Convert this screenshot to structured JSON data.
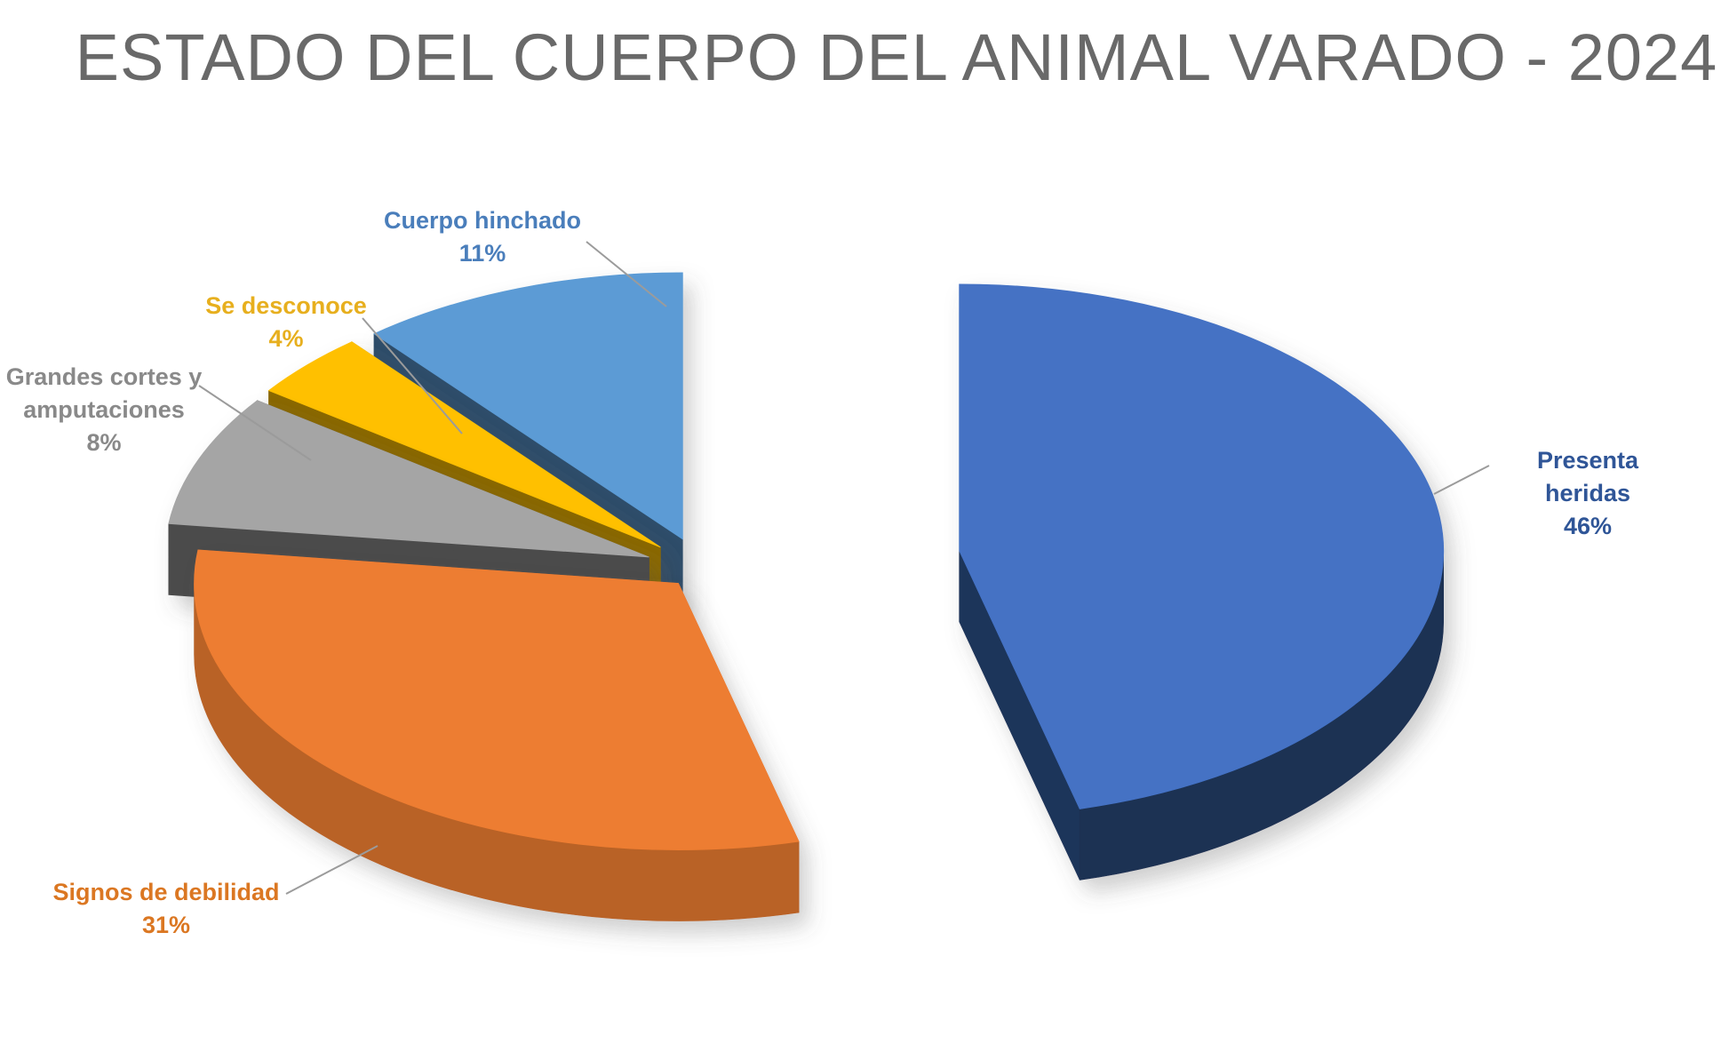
{
  "title": "ESTADO DEL CUERPO DEL ANIMAL VARADO - 2024",
  "chart_data": {
    "type": "pie",
    "title": "ESTADO DEL CUERPO DEL ANIMAL VARADO - 2024",
    "style": "3d-exploded-pie",
    "unit": "%",
    "start_angle_deg": 0,
    "direction": "clockwise",
    "legend_position": "none",
    "labels_style": "outside-with-leader-lines",
    "background_color": "#ffffff",
    "title_color": "#696969",
    "leader_line_color": "#9b9b9b",
    "slices": [
      {
        "label": "Presenta heridas",
        "value": 46,
        "percent_text": "46%",
        "color": "#4472C4",
        "label_color": "#2F5597",
        "explode": 0.54
      },
      {
        "label": "Signos de debilidad",
        "value": 31,
        "percent_text": "31%",
        "color": "#ED7D31",
        "label_color": "#DB7722",
        "explode": 0.07
      },
      {
        "label": "Grandes cortes y amputaciones",
        "value": 8,
        "percent_text": "8%",
        "color": "#A5A5A5",
        "label_color": "#898989",
        "explode": 0.12
      },
      {
        "label": "Se desconoce",
        "value": 4,
        "percent_text": "4%",
        "color": "#FFC000",
        "label_color": "#E7AF1E",
        "explode": 0.12
      },
      {
        "label": "Cuerpo hinchado",
        "value": 11,
        "percent_text": "11%",
        "color": "#5B9BD5",
        "label_color": "#4A7EBB",
        "explode": 0.12
      }
    ]
  }
}
